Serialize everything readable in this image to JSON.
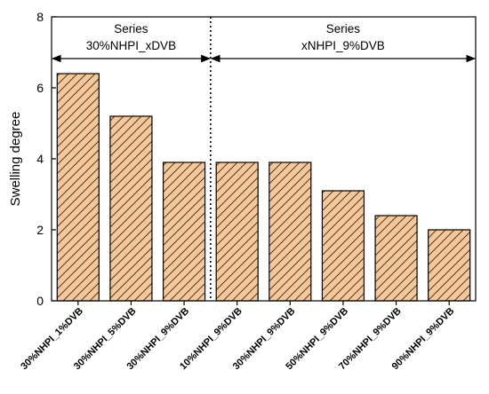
{
  "chart_data": {
    "type": "bar",
    "title": "",
    "xlabel": "",
    "ylabel": "Swelling degree",
    "ylim": [
      0,
      8
    ],
    "yticks": [
      0,
      2,
      4,
      6,
      8
    ],
    "categories": [
      "30%NHPI_1%DVB",
      "30%NHPI_5%DVB",
      "30%NHPI_9%DVB",
      "10%NHPI_9%DVB",
      "30%NHPI_9%DVB",
      "50%NHPI_9%DVB",
      "70%NHPI_9%DVB",
      "90%NHPI_9%DVB"
    ],
    "values": [
      6.4,
      5.2,
      3.9,
      3.9,
      3.9,
      3.1,
      2.4,
      2.0
    ],
    "bar_fill": "#f5c89c",
    "bar_pattern": "diagonal-hatch",
    "grid": false,
    "groups": [
      {
        "line1": "Series",
        "line2": "30%NHPI_xDVB",
        "from": 0,
        "to": 2
      },
      {
        "line1": "Series",
        "line2": "xNHPI_9%DVB",
        "from": 3,
        "to": 7
      }
    ]
  }
}
